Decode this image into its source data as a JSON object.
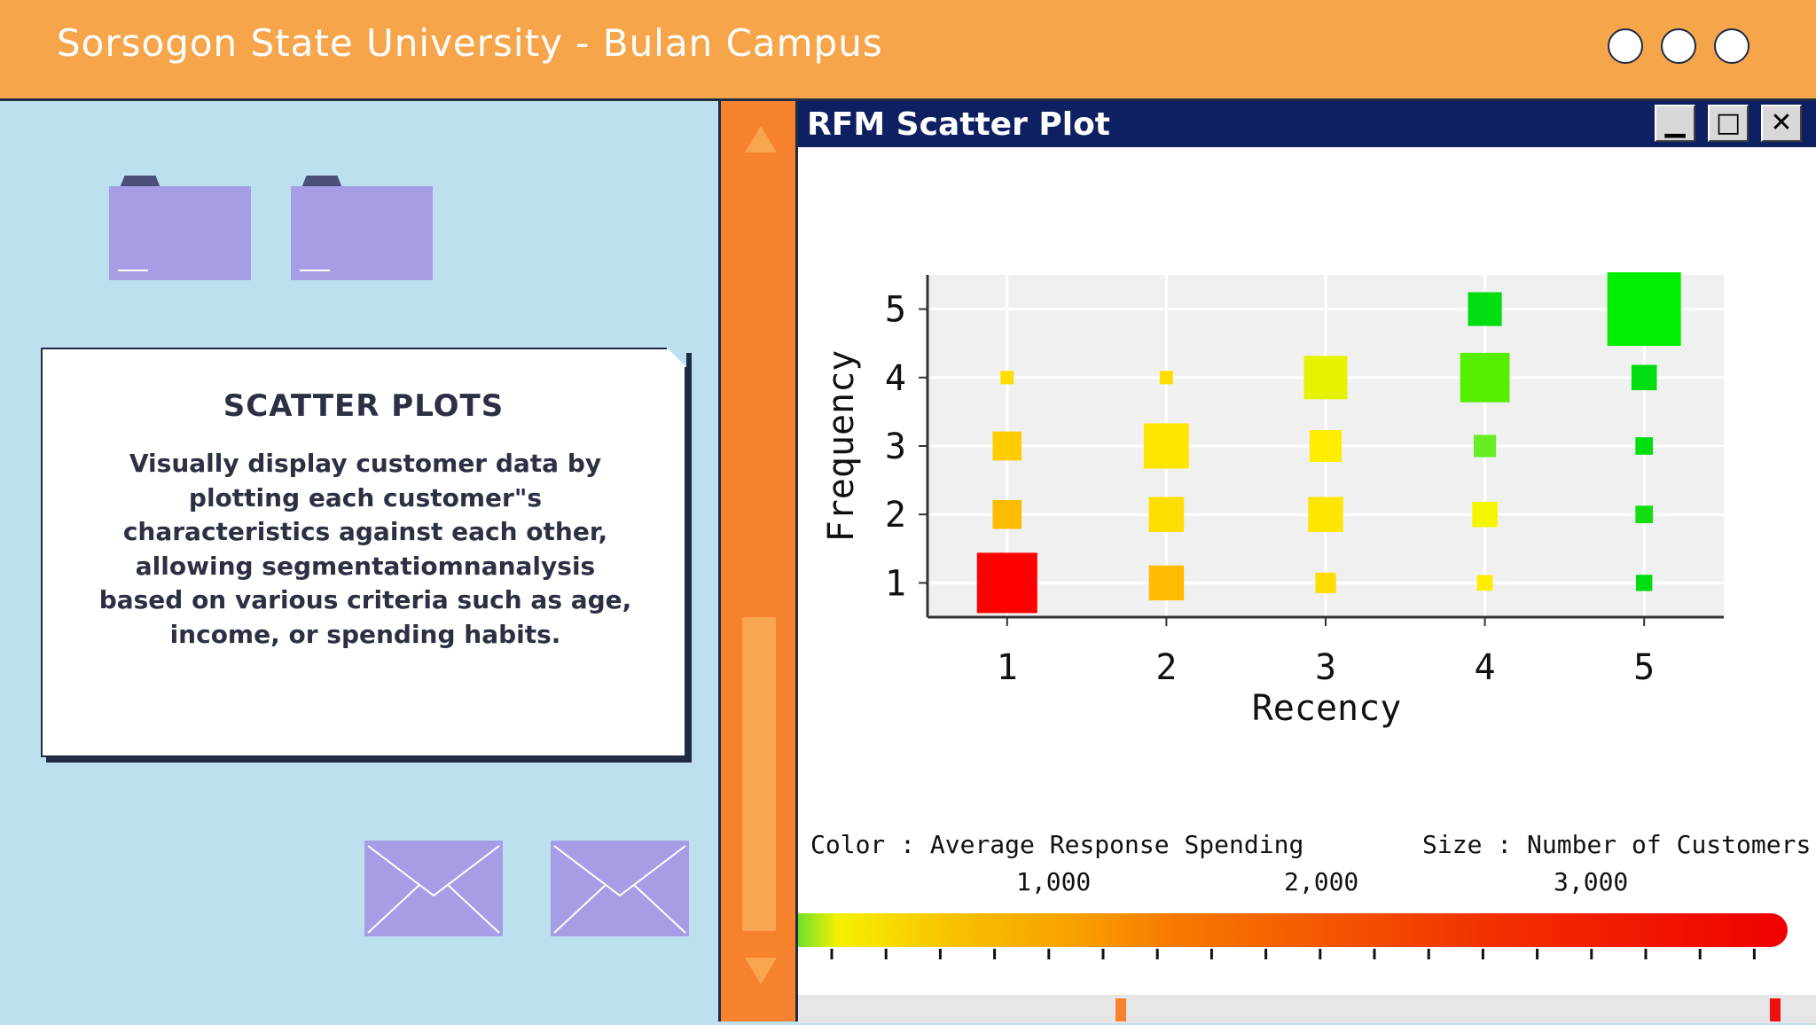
{
  "header": {
    "title": "Sorsogon State University - Bulan Campus",
    "window_buttons": [
      "circle",
      "circle",
      "circle"
    ]
  },
  "card": {
    "heading": "SCATTER PLOTS",
    "body": "Visually display customer data by plotting each customer\"s characteristics against each other, allowing segmentatiomnanalysis based on various criteria such as age, income, or spending habits."
  },
  "window": {
    "title": "RFM Scatter Plot",
    "buttons": {
      "minimize": "▁",
      "maximize": "□",
      "close": "✕"
    }
  },
  "legend": {
    "color_label": "Color",
    "color_sep": ":",
    "color_value": "Average Response Spending",
    "size_label": "Size",
    "size_sep": ":",
    "size_value": "Number of Customers",
    "scale_ticks": [
      "1,000",
      "2,000",
      "3,000"
    ]
  },
  "colors": {
    "topbar": "#f6a54b",
    "background": "#bde0ee",
    "folder": "#a59ee6",
    "scrollbar": "#f7822e",
    "window_title": "#0e1f62"
  },
  "chart_data": {
    "type": "scatter",
    "title": "",
    "xlabel": "Recency",
    "ylabel": "Frequency",
    "x_ticks": [
      "1",
      "2",
      "3",
      "4",
      "5"
    ],
    "y_ticks": [
      "1",
      "2",
      "3",
      "4",
      "5"
    ],
    "xlim": [
      0.5,
      5.5
    ],
    "ylim": [
      0.5,
      5.5
    ],
    "grid": true,
    "points": [
      {
        "x": 1,
        "y": 1,
        "size": 1.0,
        "color": "#ff0000"
      },
      {
        "x": 1,
        "y": 2,
        "size": 0.48,
        "color": "#ffbb00"
      },
      {
        "x": 1,
        "y": 3,
        "size": 0.48,
        "color": "#ffcc00"
      },
      {
        "x": 1,
        "y": 4,
        "size": 0.22,
        "color": "#ffdd00"
      },
      {
        "x": 2,
        "y": 1,
        "size": 0.58,
        "color": "#ffbb00"
      },
      {
        "x": 2,
        "y": 2,
        "size": 0.58,
        "color": "#ffdd00"
      },
      {
        "x": 2,
        "y": 3,
        "size": 0.75,
        "color": "#ffe600"
      },
      {
        "x": 2,
        "y": 4,
        "size": 0.22,
        "color": "#ffdd00"
      },
      {
        "x": 3,
        "y": 1,
        "size": 0.34,
        "color": "#ffdd00"
      },
      {
        "x": 3,
        "y": 2,
        "size": 0.58,
        "color": "#ffe600"
      },
      {
        "x": 3,
        "y": 3,
        "size": 0.53,
        "color": "#ffee00"
      },
      {
        "x": 3,
        "y": 4,
        "size": 0.72,
        "color": "#e6f200"
      },
      {
        "x": 4,
        "y": 1,
        "size": 0.26,
        "color": "#ffee00"
      },
      {
        "x": 4,
        "y": 2,
        "size": 0.42,
        "color": "#f5f500"
      },
      {
        "x": 4,
        "y": 3,
        "size": 0.37,
        "color": "#66ee22"
      },
      {
        "x": 4,
        "y": 4,
        "size": 0.82,
        "color": "#55ee00"
      },
      {
        "x": 4,
        "y": 5,
        "size": 0.56,
        "color": "#00dd11"
      },
      {
        "x": 5,
        "y": 1,
        "size": 0.27,
        "color": "#00dd11"
      },
      {
        "x": 5,
        "y": 2,
        "size": 0.29,
        "color": "#11dd11"
      },
      {
        "x": 5,
        "y": 3,
        "size": 0.29,
        "color": "#00dd11"
      },
      {
        "x": 5,
        "y": 4,
        "size": 0.42,
        "color": "#00dd11"
      },
      {
        "x": 5,
        "y": 5,
        "size": 1.22,
        "color": "#00ee00"
      }
    ]
  }
}
